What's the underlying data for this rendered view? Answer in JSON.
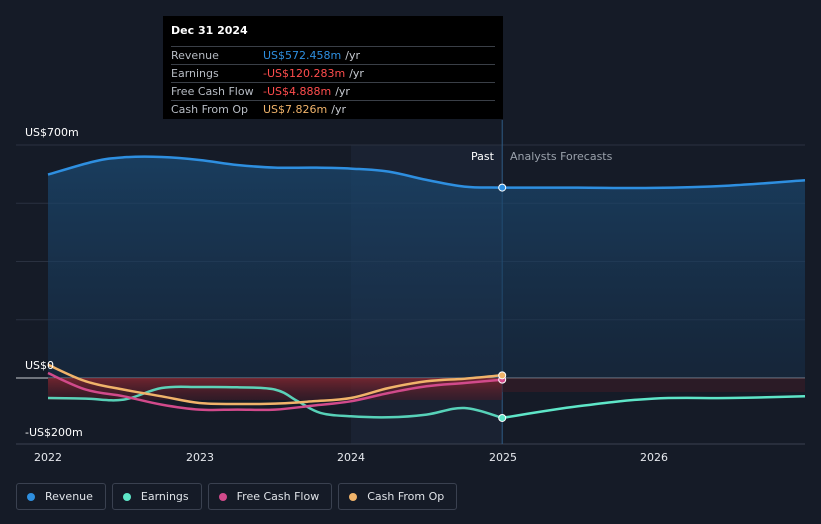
{
  "tooltip": {
    "date": "Dec 31 2024",
    "rows": [
      {
        "label": "Revenue",
        "value": "US$572.458m",
        "unit": "/yr",
        "color": "#2e8fe0"
      },
      {
        "label": "Earnings",
        "value": "-US$120.283m",
        "unit": "/yr",
        "color": "#ff4d4d"
      },
      {
        "label": "Free Cash Flow",
        "value": "-US$4.888m",
        "unit": "/yr",
        "color": "#ff4d4d"
      },
      {
        "label": "Cash From Op",
        "value": "US$7.826m",
        "unit": "/yr",
        "color": "#f0b36a"
      }
    ]
  },
  "labels": {
    "past": "Past",
    "forecast": "Analysts Forecasts"
  },
  "chart_data": {
    "type": "line",
    "y_ticks": [
      {
        "value": 700,
        "label": "US$700m"
      },
      {
        "value": 0,
        "label": "US$0"
      },
      {
        "value": -200,
        "label": "-US$200m"
      }
    ],
    "ylim": [
      -200,
      700
    ],
    "xlim": [
      2022.0,
      2027.0
    ],
    "x_ticks": [
      {
        "value": 2022,
        "label": "2022"
      },
      {
        "value": 2023,
        "label": "2023"
      },
      {
        "value": 2024,
        "label": "2024"
      },
      {
        "value": 2025,
        "label": "2025"
      },
      {
        "value": 2026,
        "label": "2026"
      }
    ],
    "divider_x": 2025.0,
    "series": [
      {
        "name": "Revenue",
        "color": "#2e8fe0",
        "x": [
          2022.0,
          2022.3,
          2022.5,
          2022.75,
          2023.0,
          2023.25,
          2023.5,
          2023.75,
          2024.0,
          2024.25,
          2024.5,
          2024.75,
          2025.0,
          2025.5,
          2026.0,
          2026.5,
          2027.0
        ],
        "y": [
          611,
          650,
          663,
          664,
          655,
          640,
          632,
          632,
          629,
          620,
          595,
          575,
          572,
          572,
          571,
          578,
          594
        ]
      },
      {
        "name": "Earnings",
        "color": "#5ee6c8",
        "x": [
          2022.0,
          2022.25,
          2022.5,
          2022.75,
          2023.0,
          2023.25,
          2023.5,
          2023.65,
          2023.8,
          2024.0,
          2024.25,
          2024.5,
          2024.75,
          2025.0,
          2025.5,
          2026.0,
          2026.5,
          2027.0
        ],
        "y": [
          -60,
          -62,
          -65,
          -30,
          -27,
          -28,
          -35,
          -70,
          -105,
          -115,
          -118,
          -110,
          -90,
          -120,
          -85,
          -62,
          -60,
          -55
        ]
      },
      {
        "name": "Free Cash Flow",
        "color": "#d14a8b",
        "x": [
          2022.0,
          2022.25,
          2022.5,
          2022.75,
          2023.0,
          2023.25,
          2023.5,
          2023.75,
          2024.0,
          2024.25,
          2024.5,
          2024.75,
          2025.0
        ],
        "y": [
          15,
          -35,
          -55,
          -80,
          -95,
          -95,
          -95,
          -83,
          -70,
          -45,
          -25,
          -15,
          -5
        ]
      },
      {
        "name": "Cash From Op",
        "color": "#f0b36a",
        "x": [
          2022.0,
          2022.25,
          2022.5,
          2022.75,
          2023.0,
          2023.25,
          2023.5,
          2023.75,
          2024.0,
          2024.25,
          2024.5,
          2024.75,
          2025.0
        ],
        "y": [
          40,
          -10,
          -35,
          -55,
          -75,
          -78,
          -77,
          -70,
          -60,
          -30,
          -10,
          -2,
          8
        ]
      }
    ],
    "legend": [
      "Revenue",
      "Earnings",
      "Free Cash Flow",
      "Cash From Op"
    ]
  }
}
